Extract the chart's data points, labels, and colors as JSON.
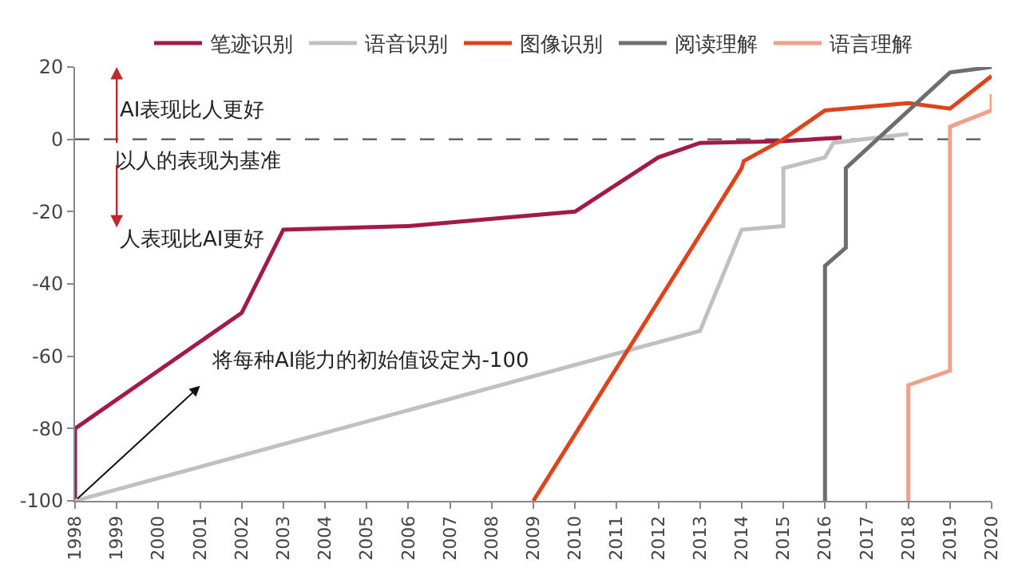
{
  "chart_data": {
    "type": "line",
    "series": [
      {
        "name": "笔迹识别",
        "color": "#a31a48",
        "x": [
          1998,
          1998,
          2002,
          2003,
          2006,
          2010,
          2012,
          2013,
          2015,
          2016.4
        ],
        "values": [
          -100,
          -80,
          -48,
          -25,
          -24,
          -20,
          -5,
          -1,
          -0.5,
          0.5
        ]
      },
      {
        "name": "语音识别",
        "color": "#c0c0c0",
        "x": [
          1998,
          2013,
          2014,
          2015,
          2015,
          2016,
          2016.2,
          2018
        ],
        "values": [
          -100,
          -53,
          -25,
          -24,
          -8,
          -5,
          -1,
          1.5
        ]
      },
      {
        "name": "图像识别",
        "color": "#e0431c",
        "x": [
          2009,
          2014,
          2014.05,
          2015,
          2016,
          2018,
          2019,
          2020
        ],
        "values": [
          -100,
          -8,
          -6,
          0,
          8,
          10,
          8.5,
          17.5
        ]
      },
      {
        "name": "阅读理解",
        "color": "#6e6e6e",
        "x": [
          2016,
          2016,
          2016.5,
          2016.5,
          2019,
          2020
        ],
        "values": [
          -100,
          -35,
          -30,
          -8,
          18.5,
          20
        ]
      },
      {
        "name": "语言理解",
        "color": "#f2a08a",
        "x": [
          2018,
          2018,
          2019,
          2019,
          2020,
          2020
        ],
        "values": [
          -100,
          -68,
          -64,
          3.5,
          8,
          12.5
        ]
      }
    ],
    "xlim": [
      1998,
      2020
    ],
    "xticks": [
      1998,
      1999,
      2000,
      2001,
      2002,
      2003,
      2004,
      2005,
      2006,
      2007,
      2008,
      2009,
      2010,
      2011,
      2012,
      2013,
      2014,
      2015,
      2016,
      2017,
      2018,
      2019,
      2020
    ],
    "ylim": [
      -100,
      20
    ],
    "yticks": [
      -100,
      -80,
      -60,
      -40,
      -20,
      0,
      20
    ],
    "ref_lines": [
      {
        "axis": "y",
        "value": 0,
        "label": "以人的表现为基准",
        "color": "#555555",
        "line_style": "dashed"
      }
    ],
    "annotations": [
      "AI表现比人更好",
      "人表现比AI更好",
      "将每种AI能力的初始值设定为-100"
    ],
    "legend": "top",
    "grid": false,
    "marker": "none",
    "line_style": "solid"
  }
}
